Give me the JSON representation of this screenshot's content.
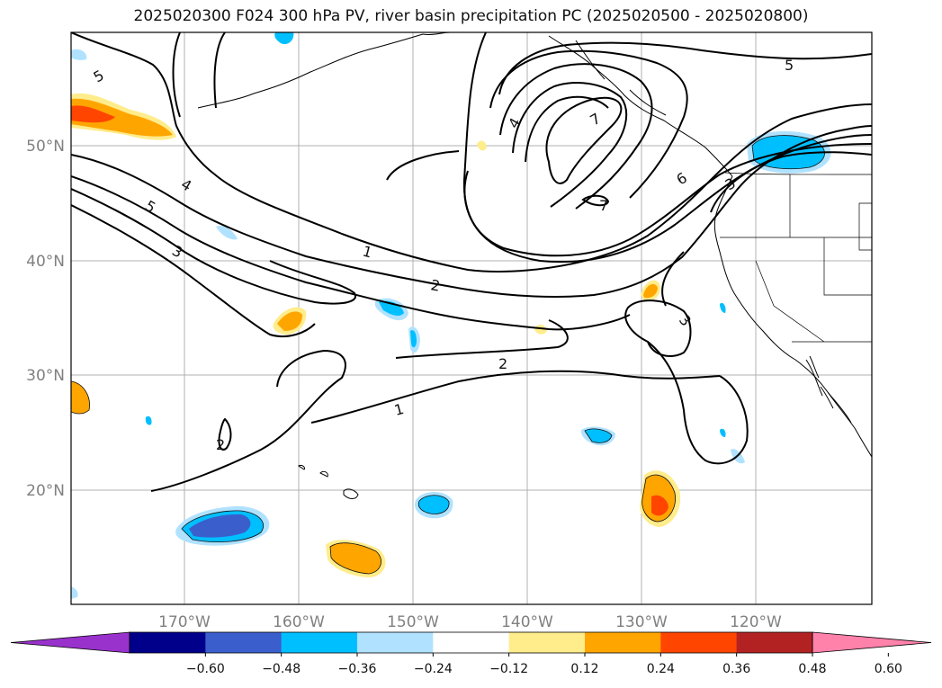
{
  "title": "2025020300 F024 300 hPa PV, river basin precipitation PC (2025020500 - 2025020800)",
  "map": {
    "latitude_labels": [
      "50°N",
      "40°N",
      "30°N",
      "20°N"
    ],
    "longitude_labels": [
      "170°W",
      "160°W",
      "150°W",
      "140°W",
      "130°W",
      "120°W"
    ],
    "pv_contour_labels": [
      "5",
      "4",
      "5",
      "3",
      "1",
      "2",
      "2",
      "1",
      "2",
      "4",
      "7",
      "7",
      "5",
      "6",
      "3",
      "3"
    ],
    "gridlines": true
  },
  "colorbar": {
    "tick_labels": [
      "−0.60",
      "−0.48",
      "−0.36",
      "−0.24",
      "−0.12",
      "0.12",
      "0.24",
      "0.36",
      "0.48",
      "0.60"
    ],
    "colors": [
      "#9932cc",
      "#00008b",
      "#3a5fcd",
      "#00bfff",
      "#b0e2ff",
      "#ffffff",
      "#ffec8b",
      "#ffa500",
      "#ff4500",
      "#b22222",
      "#ff82ab"
    ]
  }
}
